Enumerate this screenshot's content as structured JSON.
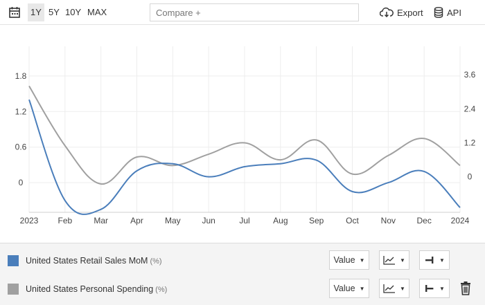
{
  "toolbar": {
    "ranges": [
      "1Y",
      "5Y",
      "10Y",
      "MAX"
    ],
    "active_range": "1Y",
    "compare_placeholder": "Compare +",
    "export_label": "Export",
    "api_label": "API",
    "icons": [
      "calendar-icon",
      "cloud-download-icon",
      "database-icon"
    ]
  },
  "chart_data": {
    "type": "line",
    "x": [
      "2023",
      "Feb",
      "Mar",
      "Apr",
      "May",
      "Jun",
      "Jul",
      "Aug",
      "Sep",
      "Oct",
      "Nov",
      "Dec",
      "2024"
    ],
    "left_axis": {
      "ticks": [
        "1.8",
        "1.2",
        "0.6",
        "0"
      ],
      "range": [
        -0.5,
        2.3
      ]
    },
    "right_axis": {
      "ticks": [
        "3.6",
        "2.4",
        "1.2",
        "0"
      ],
      "range": [
        -1.25,
        4.6
      ]
    },
    "series": [
      {
        "name": "United States Retail Sales MoM",
        "unit": "(%)",
        "axis": "left",
        "color": "#4a7ebb",
        "values": [
          1.4,
          -0.3,
          -0.45,
          0.2,
          0.32,
          0.1,
          0.27,
          0.32,
          0.38,
          -0.15,
          0.0,
          0.19,
          -0.42
        ]
      },
      {
        "name": "United States Personal Spending",
        "unit": "(%)",
        "axis": "right",
        "color": "#a0a0a0",
        "values": [
          3.2,
          1.1,
          -0.25,
          0.7,
          0.4,
          0.8,
          1.2,
          0.6,
          1.3,
          0.1,
          0.75,
          1.35,
          0.4
        ]
      }
    ],
    "grid": true
  },
  "legend": {
    "rows": [
      {
        "label": "United States Retail Sales MoM",
        "unit": "(%)",
        "color": "#4a7ebb",
        "value_label": "Value"
      },
      {
        "label": "United States Personal Spending",
        "unit": "(%)",
        "color": "#a0a0a0",
        "value_label": "Value"
      }
    ]
  }
}
